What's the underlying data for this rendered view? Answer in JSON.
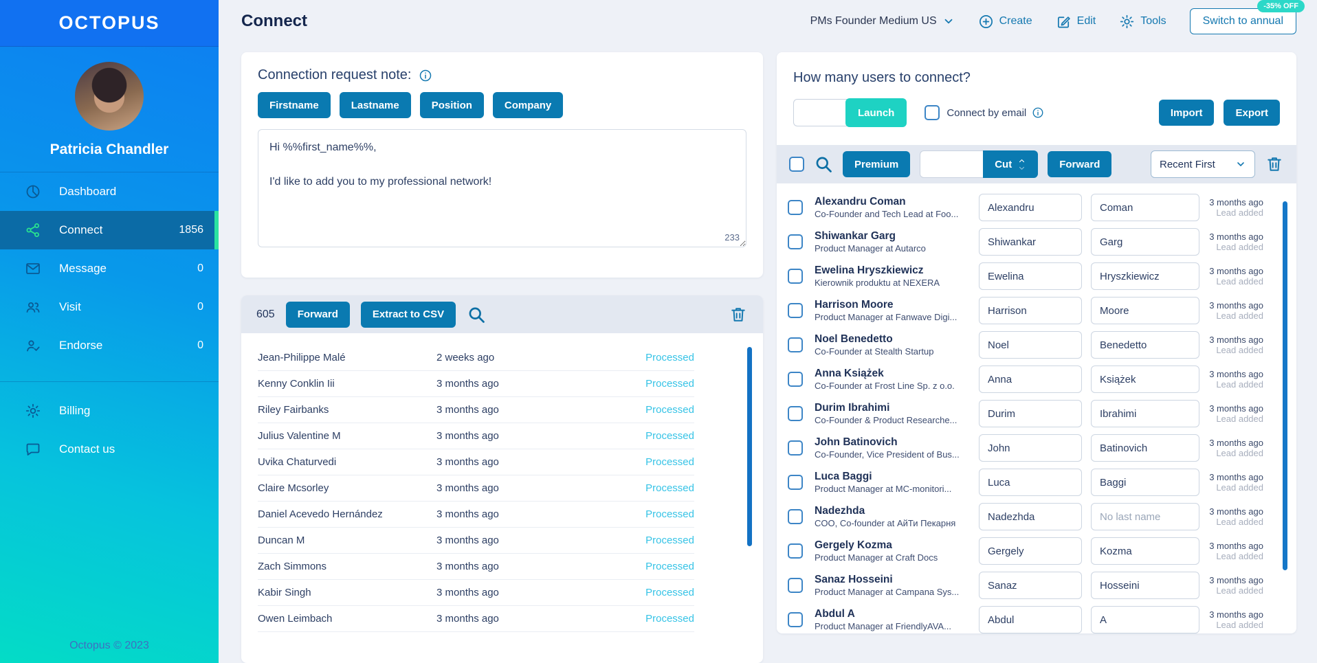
{
  "colors": {
    "accent_blue": "#0a7ab1",
    "launch_teal": "#1ed2c3",
    "badge_teal": "#2cd8c8",
    "link_blue": "#1478b0",
    "title_navy": "#14264d",
    "processed_cyan": "#36c3e6",
    "sidebar_active_bg": "#0b6ba6",
    "active_strip_green": "#2ae3a1"
  },
  "sidebar": {
    "logo": "OCTOPUS",
    "user_name": "Patricia Chandler",
    "menu": [
      {
        "label": "Dashboard",
        "icon": "pie-chart-icon",
        "count": "",
        "active": false
      },
      {
        "label": "Connect",
        "icon": "share-icon",
        "count": "1856",
        "active": true
      },
      {
        "label": "Message",
        "icon": "envelope-icon",
        "count": "0",
        "active": false
      },
      {
        "label": "Visit",
        "icon": "people-icon",
        "count": "0",
        "active": false
      },
      {
        "label": "Endorse",
        "icon": "person-check-icon",
        "count": "0",
        "active": false
      }
    ],
    "secondary": [
      {
        "label": "Billing",
        "icon": "gear-icon"
      },
      {
        "label": "Contact us",
        "icon": "chat-icon"
      }
    ],
    "footer": "Octopus © 2023"
  },
  "header": {
    "title": "Connect",
    "campaign": "PMs Founder Medium US",
    "create_label": "Create",
    "edit_label": "Edit",
    "tools_label": "Tools",
    "switch_annual_label": "Switch to annual",
    "discount_badge": "-35% OFF"
  },
  "note_panel": {
    "title": "Connection request note:",
    "variables": [
      "Firstname",
      "Lastname",
      "Position",
      "Company"
    ],
    "message": "Hi %%first_name%%,\n\nI'd like to add you to my professional network!",
    "char_count": "233"
  },
  "processed_panel": {
    "count": "605",
    "forward_label": "Forward",
    "extract_label": "Extract to CSV",
    "rows": [
      {
        "name": "Jean-Philippe Malé",
        "time": "2 weeks ago",
        "status": "Processed"
      },
      {
        "name": "Kenny Conklin Iii",
        "time": "3 months ago",
        "status": "Processed"
      },
      {
        "name": "Riley Fairbanks",
        "time": "3 months ago",
        "status": "Processed"
      },
      {
        "name": "Julius Valentine M",
        "time": "3 months ago",
        "status": "Processed"
      },
      {
        "name": "Uvika Chaturvedi",
        "time": "3 months ago",
        "status": "Processed"
      },
      {
        "name": "Claire Mcsorley",
        "time": "3 months ago",
        "status": "Processed"
      },
      {
        "name": "Daniel Acevedo Hernández",
        "time": "3 months ago",
        "status": "Processed"
      },
      {
        "name": "Duncan M",
        "time": "3 months ago",
        "status": "Processed"
      },
      {
        "name": "Zach Simmons",
        "time": "3 months ago",
        "status": "Processed"
      },
      {
        "name": "Kabir Singh",
        "time": "3 months ago",
        "status": "Processed"
      },
      {
        "name": "Owen Leimbach",
        "time": "3 months ago",
        "status": "Processed"
      }
    ]
  },
  "connect_panel": {
    "title": "How many users to connect?",
    "launch_value": "",
    "launch_label": "Launch",
    "connect_by_email_label": "Connect by email",
    "import_label": "Import",
    "export_label": "Export",
    "premium_label": "Premium",
    "cut_value": "",
    "cut_label": "Cut",
    "forward_label": "Forward",
    "sort_value": "Recent First",
    "lead_added_label": "Lead added",
    "no_last_name_placeholder": "No last name",
    "users": [
      {
        "name": "Alexandru Coman",
        "title": "Co-Founder and Tech Lead at Foo...",
        "first": "Alexandru",
        "last": "Coman",
        "time": "3 months ago"
      },
      {
        "name": "Shiwankar Garg",
        "title": "Product Manager at Autarco",
        "first": "Shiwankar",
        "last": "Garg",
        "time": "3 months ago"
      },
      {
        "name": "Ewelina Hryszkiewicz",
        "title": "Kierownik produktu at NEXERA",
        "first": "Ewelina",
        "last": "Hryszkiewicz",
        "time": "3 months ago"
      },
      {
        "name": "Harrison Moore",
        "title": "Product Manager at Fanwave Digi...",
        "first": "Harrison",
        "last": "Moore",
        "time": "3 months ago"
      },
      {
        "name": "Noel Benedetto",
        "title": "Co-Founder at Stealth Startup",
        "first": "Noel",
        "last": "Benedetto",
        "time": "3 months ago"
      },
      {
        "name": "Anna Książek",
        "title": "Co-Founder at Frost Line Sp. z o.o.",
        "first": "Anna",
        "last": "Książek",
        "time": "3 months ago"
      },
      {
        "name": "Durim Ibrahimi",
        "title": "Co-Founder & Product Researche...",
        "first": "Durim",
        "last": "Ibrahimi",
        "time": "3 months ago"
      },
      {
        "name": "John Batinovich",
        "title": "Co-Founder, Vice President of Bus...",
        "first": "John",
        "last": "Batinovich",
        "time": "3 months ago"
      },
      {
        "name": "Luca Baggi",
        "title": "Product Manager at MC-monitori...",
        "first": "Luca",
        "last": "Baggi",
        "time": "3 months ago"
      },
      {
        "name": "Nadezhda",
        "title": "COO, Co-founder at АйТи Пекарня",
        "first": "Nadezhda",
        "last": "",
        "time": "3 months ago"
      },
      {
        "name": "Gergely Kozma",
        "title": "Product Manager at Craft Docs",
        "first": "Gergely",
        "last": "Kozma",
        "time": "3 months ago"
      },
      {
        "name": "Sanaz Hosseini",
        "title": "Product Manager at Campana Sys...",
        "first": "Sanaz",
        "last": "Hosseini",
        "time": "3 months ago"
      },
      {
        "name": "Abdul A",
        "title": "Product Manager at FriendlyAVA...",
        "first": "Abdul",
        "last": "A",
        "time": "3 months ago"
      }
    ]
  }
}
